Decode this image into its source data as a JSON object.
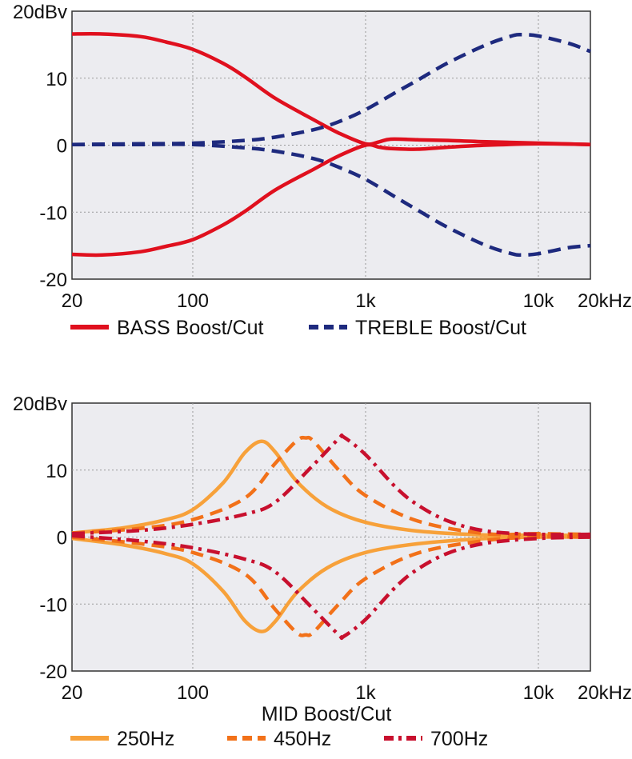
{
  "chart_data": [
    {
      "type": "line",
      "xscale": "log",
      "xlim": [
        20,
        20000
      ],
      "ylim": [
        -20,
        20
      ],
      "grid": true,
      "yticks": [
        {
          "value": 20,
          "label": "20dBv"
        },
        {
          "value": 10,
          "label": "10"
        },
        {
          "value": 0,
          "label": "0"
        },
        {
          "value": -10,
          "label": "-10"
        },
        {
          "value": -20,
          "label": "-20"
        }
      ],
      "xticks": [
        {
          "value": 20,
          "label": "20"
        },
        {
          "value": 100,
          "label": "100"
        },
        {
          "value": 1000,
          "label": "1k"
        },
        {
          "value": 10000,
          "label": "10k"
        },
        {
          "value": 20000,
          "label": "20kHz"
        }
      ],
      "legend_position": "bottom",
      "series": [
        {
          "name": "BASS Boost/Cut",
          "legend": true,
          "color": "#e0101e",
          "style": "solid",
          "x": [
            20,
            30,
            50,
            70,
            100,
            150,
            200,
            300,
            500,
            700,
            1000,
            1200,
            1400,
            2000,
            3000,
            5000,
            10000,
            20000
          ],
          "y": [
            16.6,
            16.6,
            16.2,
            15.4,
            14.3,
            12.2,
            10.2,
            7.0,
            3.8,
            1.8,
            0.2,
            0.5,
            0.9,
            0.8,
            0.7,
            0.5,
            0.3,
            0.1
          ]
        },
        {
          "name": "BASS Boost/Cut",
          "legend": false,
          "color": "#e0101e",
          "style": "solid",
          "x": [
            20,
            30,
            50,
            70,
            100,
            150,
            200,
            300,
            500,
            700,
            1000,
            1200,
            1400,
            2000,
            3000,
            5000,
            10000,
            20000
          ],
          "y": [
            -16.3,
            -16.4,
            -15.9,
            -15.1,
            -14.1,
            -11.9,
            -9.9,
            -6.7,
            -3.6,
            -1.6,
            0.0,
            -0.3,
            -0.5,
            -0.6,
            -0.3,
            0.0,
            0.2,
            0.1
          ]
        },
        {
          "name": "TREBLE Boost/Cut",
          "legend": true,
          "color": "#1e2a7e",
          "style": "dashed",
          "x": [
            20,
            50,
            100,
            200,
            300,
            500,
            700,
            1000,
            1500,
            2000,
            3000,
            5000,
            7000,
            8000,
            10000,
            15000,
            20000
          ],
          "y": [
            0.1,
            0.2,
            0.3,
            0.7,
            1.2,
            2.3,
            3.5,
            5.3,
            7.9,
            9.7,
            12.3,
            15.0,
            16.3,
            16.5,
            16.3,
            15.2,
            14.0
          ]
        },
        {
          "name": "TREBLE Boost/Cut",
          "legend": false,
          "color": "#1e2a7e",
          "style": "dashed",
          "x": [
            20,
            50,
            100,
            200,
            300,
            500,
            700,
            1000,
            1500,
            2000,
            3000,
            5000,
            7000,
            8000,
            10000,
            15000,
            20000
          ],
          "y": [
            0.1,
            0.1,
            0.1,
            -0.4,
            -0.9,
            -2.0,
            -3.3,
            -5.1,
            -7.8,
            -9.7,
            -12.3,
            -15.0,
            -16.2,
            -16.4,
            -16.2,
            -15.3,
            -15.0
          ]
        }
      ]
    },
    {
      "type": "line",
      "xscale": "log",
      "xlim": [
        20,
        20000
      ],
      "ylim": [
        -20,
        20
      ],
      "grid": true,
      "xlabel": "MID Boost/Cut",
      "yticks": [
        {
          "value": 20,
          "label": "20dBv"
        },
        {
          "value": 10,
          "label": "10"
        },
        {
          "value": 0,
          "label": "0"
        },
        {
          "value": -10,
          "label": "-10"
        },
        {
          "value": -20,
          "label": "-20"
        }
      ],
      "xticks": [
        {
          "value": 20,
          "label": "20"
        },
        {
          "value": 100,
          "label": "100"
        },
        {
          "value": 1000,
          "label": "1k"
        },
        {
          "value": 10000,
          "label": "10k"
        },
        {
          "value": 20000,
          "label": "20kHz"
        }
      ],
      "legend_position": "bottom",
      "series": [
        {
          "name": "250Hz",
          "legend": true,
          "color": "#f7a13a",
          "style": "solid",
          "x": [
            20,
            40,
            70,
            100,
            150,
            200,
            250,
            300,
            400,
            600,
            1000,
            2000,
            5000,
            10000,
            20000
          ],
          "y": [
            0.6,
            1.4,
            2.6,
            4.1,
            8.1,
            12.6,
            14.3,
            12.7,
            8.3,
            4.5,
            2.2,
            0.9,
            0.3,
            0.3,
            0.2
          ]
        },
        {
          "name": "250Hz",
          "legend": false,
          "color": "#f7a13a",
          "style": "solid",
          "x": [
            20,
            40,
            70,
            100,
            150,
            200,
            250,
            300,
            400,
            600,
            1000,
            2000,
            5000,
            10000,
            20000
          ],
          "y": [
            -0.2,
            -1.2,
            -2.5,
            -4.0,
            -8.1,
            -12.5,
            -14.1,
            -12.6,
            -8.3,
            -4.6,
            -2.3,
            -1.0,
            -0.2,
            0.0,
            0.0
          ]
        },
        {
          "name": "450Hz",
          "legend": true,
          "color": "#f27119",
          "style": "dashed",
          "x": [
            20,
            50,
            100,
            200,
            300,
            400,
            450,
            500,
            700,
            1000,
            2000,
            5000,
            10000,
            20000
          ],
          "y": [
            0.6,
            1.3,
            2.6,
            5.8,
            11.0,
            14.4,
            14.8,
            14.3,
            10.0,
            6.2,
            2.4,
            0.5,
            0.5,
            0.4
          ]
        },
        {
          "name": "450Hz",
          "legend": false,
          "color": "#f27119",
          "style": "dashed",
          "x": [
            20,
            50,
            100,
            200,
            300,
            400,
            450,
            500,
            700,
            1000,
            2000,
            5000,
            10000,
            20000
          ],
          "y": [
            0.0,
            -1.0,
            -2.3,
            -5.5,
            -10.8,
            -14.3,
            -14.6,
            -14.2,
            -10.0,
            -6.2,
            -2.4,
            -0.5,
            0.0,
            0.0
          ]
        },
        {
          "name": "700Hz",
          "legend": true,
          "color": "#c8102e",
          "style": "dashdot",
          "x": [
            20,
            50,
            100,
            200,
            300,
            500,
            700,
            750,
            1000,
            1500,
            2000,
            3000,
            5000,
            10000,
            20000
          ],
          "y": [
            0.5,
            1.0,
            1.9,
            3.4,
            5.2,
            10.8,
            14.7,
            14.9,
            12.3,
            7.4,
            4.8,
            2.4,
            0.9,
            0.4,
            0.4
          ]
        },
        {
          "name": "700Hz",
          "legend": false,
          "color": "#c8102e",
          "style": "dashdot",
          "x": [
            20,
            50,
            100,
            200,
            300,
            500,
            700,
            750,
            1000,
            1500,
            2000,
            3000,
            5000,
            10000,
            20000
          ],
          "y": [
            0.2,
            -0.6,
            -1.6,
            -3.3,
            -5.2,
            -10.8,
            -14.6,
            -14.8,
            -12.3,
            -7.4,
            -4.8,
            -2.4,
            -0.9,
            -0.2,
            0.0
          ]
        }
      ]
    }
  ]
}
